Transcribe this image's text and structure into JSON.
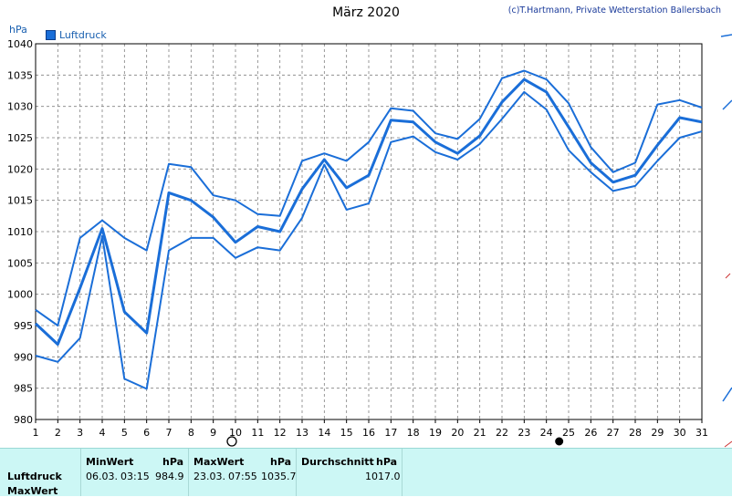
{
  "chart_data": {
    "type": "line",
    "title": "März 2020",
    "copyright": "(c)T.Hartmann, Private Wetterstation Ballersbach",
    "unit_label": "hPa",
    "legend": [
      {
        "label": "Luftdruck",
        "color": "#1a6ed8"
      }
    ],
    "x_ticks": [
      "1",
      "2",
      "3",
      "4",
      "5",
      "6",
      "7",
      "8",
      "9",
      "10",
      "11",
      "12",
      "13",
      "14",
      "15",
      "16",
      "17",
      "18",
      "19",
      "20",
      "21",
      "22",
      "23",
      "24",
      "25",
      "26",
      "27",
      "28",
      "29",
      "30",
      "31"
    ],
    "y_ticks": [
      "1040",
      "1035",
      "1030",
      "1025",
      "1020",
      "1015",
      "1010",
      "1005",
      "1000",
      "995",
      "990",
      "985",
      "980"
    ],
    "ylim": [
      980,
      1040
    ],
    "xlim": [
      1,
      31
    ],
    "grid": true,
    "moon_markers": [
      {
        "day": 10,
        "phase": "full"
      },
      {
        "day": 24,
        "phase": "new"
      }
    ],
    "series": [
      {
        "role": "max",
        "values": [
          997.5,
          995.0,
          1009.0,
          1011.8,
          1009.0,
          1007.0,
          1020.8,
          1020.3,
          1015.8,
          1015.0,
          1012.8,
          1012.5,
          1021.3,
          1022.5,
          1021.3,
          1024.3,
          1029.7,
          1029.3,
          1025.7,
          1024.8,
          1028.0,
          1034.5,
          1035.7,
          1034.3,
          1030.5,
          1023.5,
          1019.5,
          1021.0,
          1030.3,
          1031.0,
          1029.8
        ]
      },
      {
        "role": "mean",
        "values": [
          995.3,
          992.0,
          1001.0,
          1010.5,
          997.2,
          993.8,
          1016.2,
          1015.0,
          1012.3,
          1008.3,
          1010.8,
          1010.0,
          1016.8,
          1021.5,
          1017.0,
          1019.0,
          1027.8,
          1027.5,
          1024.3,
          1022.5,
          1025.3,
          1030.7,
          1034.3,
          1032.3,
          1026.7,
          1021.0,
          1017.9,
          1019.0,
          1023.8,
          1028.2,
          1027.5
        ]
      },
      {
        "role": "min",
        "values": [
          990.2,
          989.2,
          993.0,
          1009.3,
          986.5,
          984.9,
          1007.0,
          1009.0,
          1009.0,
          1005.8,
          1007.5,
          1007.0,
          1012.2,
          1020.7,
          1013.5,
          1014.5,
          1024.3,
          1025.2,
          1022.7,
          1021.5,
          1024.0,
          1028.0,
          1032.3,
          1029.5,
          1023.0,
          1019.5,
          1016.5,
          1017.3,
          1021.3,
          1025.0,
          1026.0
        ]
      }
    ]
  },
  "table": {
    "headers": {
      "min": "MinWert",
      "max": "MaxWert",
      "avg": "Durchschnitt",
      "unit": "hPa"
    },
    "rows": [
      {
        "label": "Luftdruck",
        "min_date": "06.03.",
        "min_time": "03:15",
        "min_value": "984.9",
        "max_date": "23.03.",
        "max_time": "07:55",
        "max_value": "1035.7",
        "avg_value": "1017.0"
      },
      {
        "label": "MaxWert"
      }
    ]
  }
}
